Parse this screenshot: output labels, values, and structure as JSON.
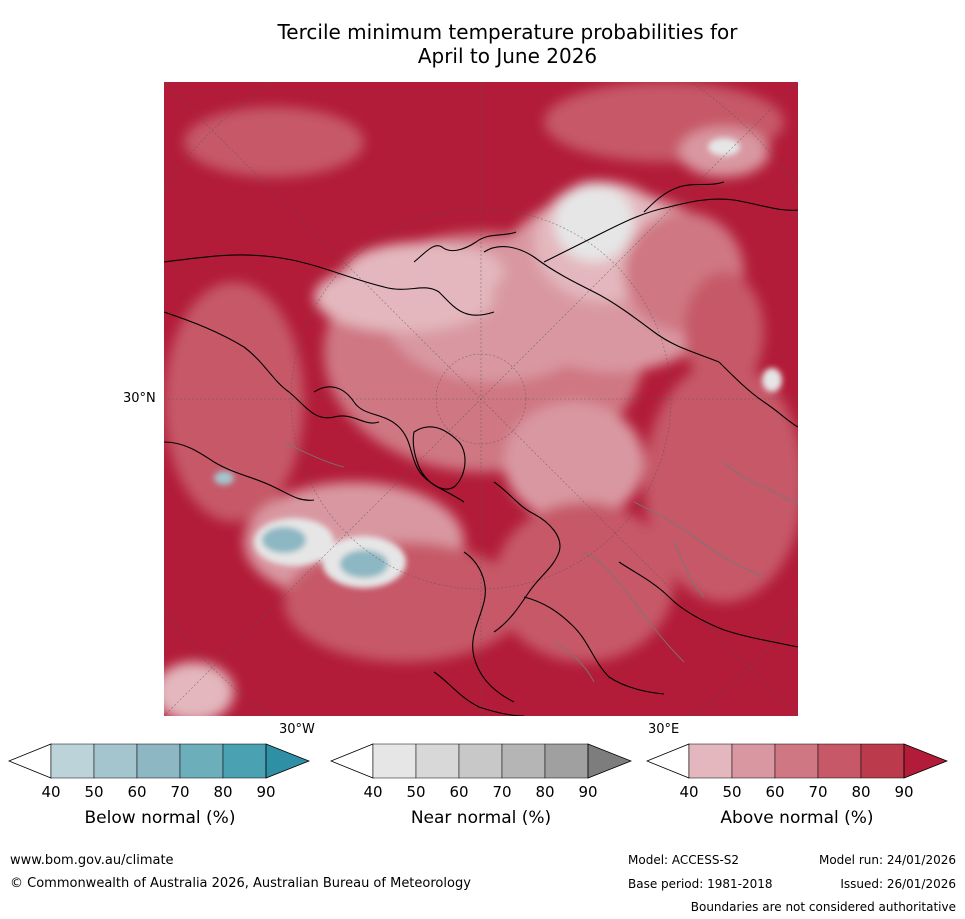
{
  "title_line1": "Tercile minimum temperature probabilities for",
  "title_line2": "April to June 2026",
  "map_labels": {
    "lat_30n": "30°N",
    "lon_30w": "30°W",
    "lon_30e": "30°E"
  },
  "colorbars": [
    {
      "name": "below",
      "label": "Below normal (%)",
      "ticks": [
        "40",
        "50",
        "60",
        "70",
        "80",
        "90"
      ],
      "colors": [
        "#ffffff",
        "#bcd3da",
        "#a4c5cd",
        "#8cb7c3",
        "#6daebb",
        "#4aa1b1",
        "#2f8fa5"
      ]
    },
    {
      "name": "near",
      "label": "Near normal (%)",
      "ticks": [
        "40",
        "50",
        "60",
        "70",
        "80",
        "90"
      ],
      "colors": [
        "#ffffff",
        "#e6e6e6",
        "#d8d8d8",
        "#c8c8c8",
        "#b5b5b5",
        "#a0a0a0",
        "#7d7d7d"
      ]
    },
    {
      "name": "above",
      "label": "Above normal (%)",
      "ticks": [
        "40",
        "50",
        "60",
        "70",
        "80",
        "90"
      ],
      "colors": [
        "#ffffff",
        "#e3b7bd",
        "#d998a1",
        "#cf7783",
        "#c65867",
        "#bb3a4c",
        "#b21c38"
      ]
    }
  ],
  "footer": {
    "website": "www.bom.gov.au/climate",
    "copyright": "© Commonwealth of Australia 2026, Australian Bureau of Meteorology",
    "model": "Model: ACCESS-S2",
    "model_run": "Model run: 24/01/2026",
    "base_period": "Base period: 1981-2018",
    "issued": "Issued: 26/01/2026",
    "disclaimer": "Boundaries are not considered authoritative"
  }
}
